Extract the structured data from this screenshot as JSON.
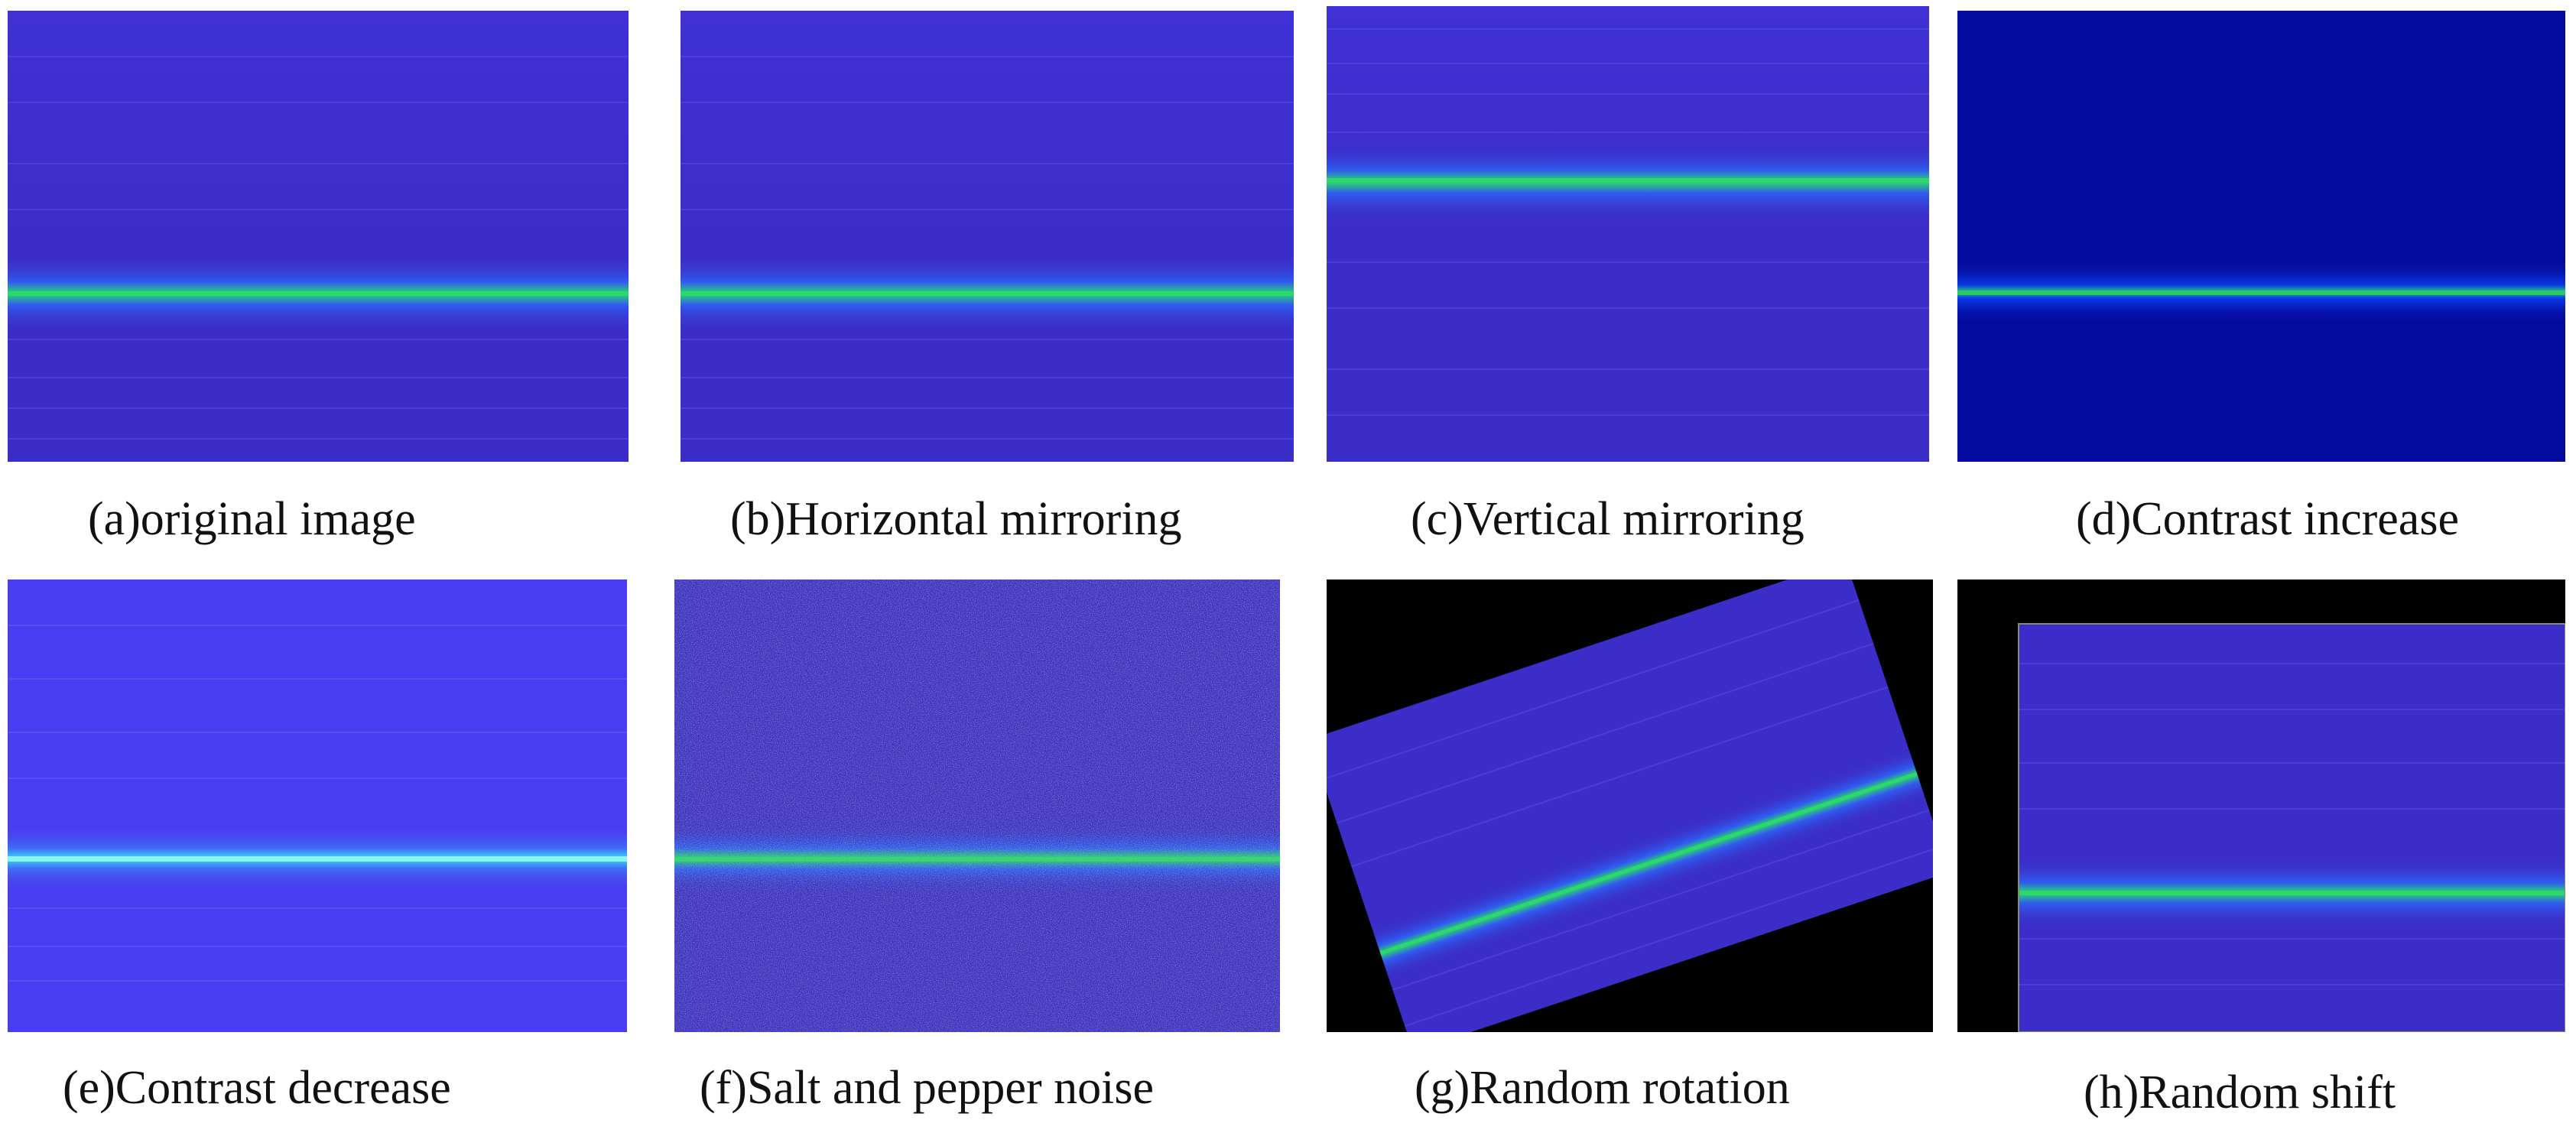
{
  "captions": {
    "a": "(a)original image",
    "b": "(b)Horizontal mirroring",
    "c": "(c)Vertical mirroring",
    "d": "(d)Contrast increase",
    "e": "(e)Contrast decrease",
    "f": "(f)Salt and pepper noise",
    "g": "(g)Random rotation",
    "h": "(h)Random shift"
  },
  "colors": {
    "base": "#3d2fd0",
    "base_dark": "#050a9e",
    "base_light": "#4a3cf0",
    "line_green": "#2bd86a",
    "line_cyan": "#3fd8f2",
    "background_black": "#000000"
  }
}
